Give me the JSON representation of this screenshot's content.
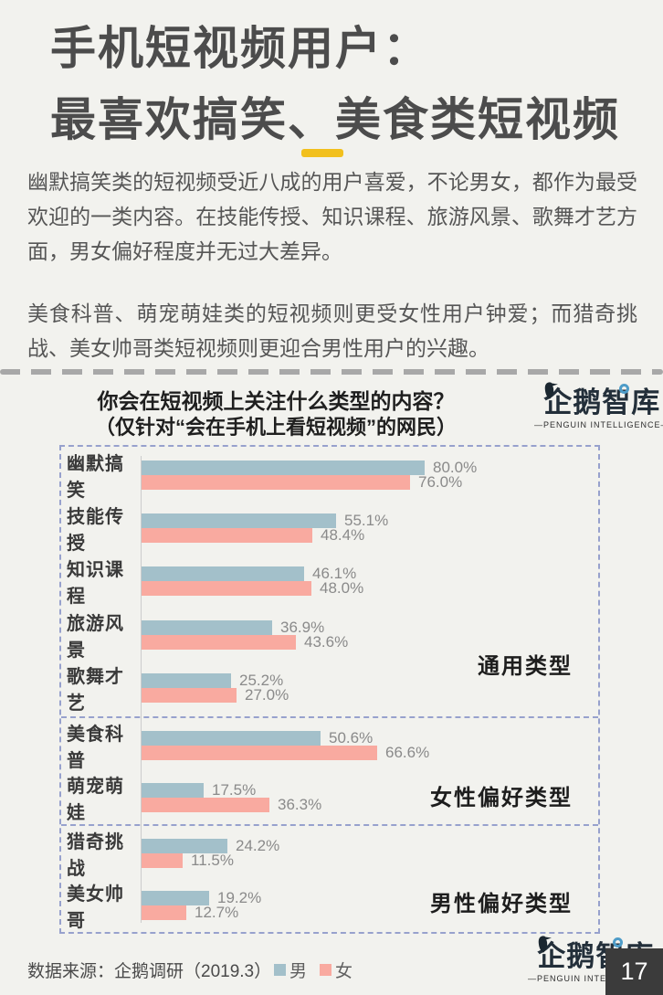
{
  "header": {
    "title_line1": "手机短视频用户：",
    "title_line2": "最喜欢搞笑、美食类短视频",
    "accent_color": "#f2c01d"
  },
  "intro": {
    "paragraph1": "幽默搞笑类的短视频受近八成的用户喜爱，不论男女，都作为最受欢迎的一类内容。在技能传授、知识课程、旅游风景、歌舞才艺方面，男女偏好程度并无过大差异。",
    "paragraph2": "美食科普、萌宠萌娃类的短视频则更受女性用户钟爱；而猎奇挑战、美女帅哥类短视频则更迎合男性用户的兴趣。"
  },
  "chart": {
    "question_line1": "你会在短视频上关注什么类型的内容？",
    "question_line2": "（仅针对“会在手机上看短视频”的网民）"
  },
  "chart_data": {
    "type": "bar",
    "orientation": "horizontal",
    "unit": "%",
    "xlim": [
      0,
      100
    ],
    "categories": [
      "幽默搞笑",
      "技能传授",
      "知识课程",
      "旅游风景",
      "歌舞才艺",
      "美食科普",
      "萌宠萌娃",
      "猎奇挑战",
      "美女帅哥"
    ],
    "series": [
      {
        "name": "男",
        "color": "#a3c0ca",
        "values": [
          80.0,
          55.1,
          46.1,
          36.9,
          25.2,
          50.6,
          17.5,
          24.2,
          19.2
        ]
      },
      {
        "name": "女",
        "color": "#f9aaa0",
        "values": [
          76.0,
          48.4,
          48.0,
          43.6,
          27.0,
          66.6,
          36.3,
          11.5,
          12.7
        ]
      }
    ],
    "sections": [
      {
        "label": "通用类型",
        "rows": [
          0,
          1,
          2,
          3,
          4
        ]
      },
      {
        "label": "女性偏好类型",
        "rows": [
          5,
          6
        ]
      },
      {
        "label": "男性偏好类型",
        "rows": [
          7,
          8
        ]
      }
    ],
    "grid": false,
    "legend_position": "bottom"
  },
  "legend": {
    "male": "男",
    "female": "女",
    "male_color": "#a3c0ca",
    "female_color": "#f9aaa0"
  },
  "logo": {
    "name_cn": "企鹅智库",
    "name_en": "—PENGUIN INTELLIGENCE—"
  },
  "footer": {
    "source": "数据来源：企鹅调研（2019.3）",
    "page_number": "17"
  }
}
